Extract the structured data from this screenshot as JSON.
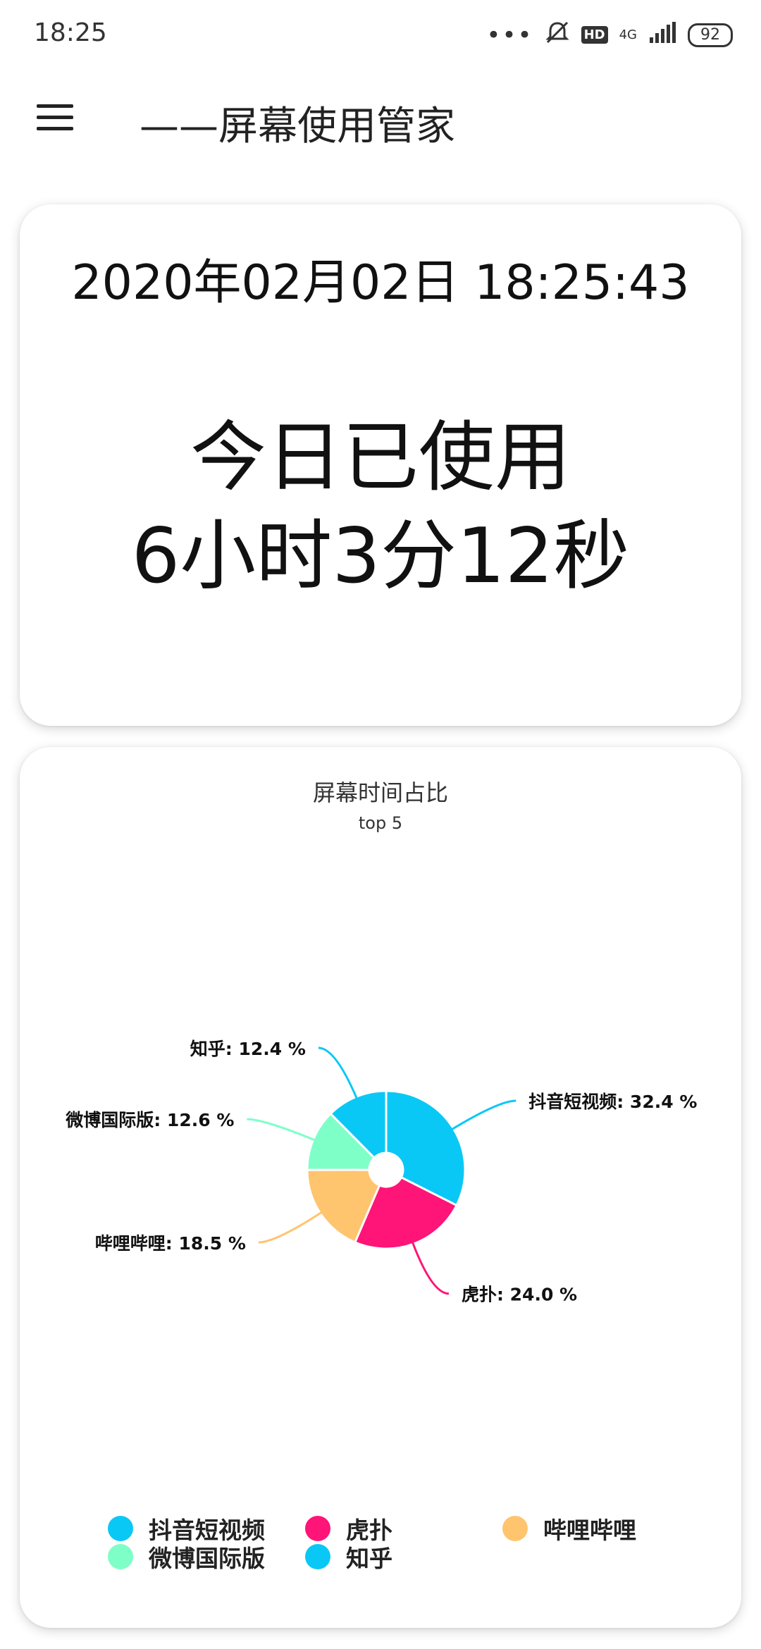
{
  "status_bar": {
    "time": "18:25",
    "dots": "•••",
    "hd": "HD",
    "network": "4G",
    "battery": "92",
    "icons": [
      "more-dots-icon",
      "alarm-off-icon",
      "hd-icon",
      "signal-icon",
      "battery-icon"
    ]
  },
  "app_bar": {
    "title": "——屏幕使用管家",
    "menu_icon": "hamburger-menu-icon"
  },
  "usage_card": {
    "datetime": "2020年02月02日 18:25:43",
    "label": "今日已使用",
    "value": "6小时3分12秒"
  },
  "chart_card": {
    "title": "屏幕时间占比",
    "subtitle": "top 5"
  },
  "chart_data": {
    "type": "pie",
    "title": "屏幕时间占比",
    "subtitle": "top 5",
    "donut": true,
    "legend_position": "bottom",
    "slices": [
      {
        "name": "抖音短视频",
        "value": 32.4,
        "label": "抖音短视频: 32.4 %",
        "color": "#0AC8F5"
      },
      {
        "name": "虎扑",
        "value": 24.0,
        "label": "虎扑: 24.0 %",
        "color": "#FF1478"
      },
      {
        "name": "哔哩哔哩",
        "value": 18.5,
        "label": "哔哩哔哩: 18.5 %",
        "color": "#FFC46E"
      },
      {
        "name": "微博国际版",
        "value": 12.6,
        "label": "微博国际版: 12.6 %",
        "color": "#7EFFC8"
      },
      {
        "name": "知乎",
        "value": 12.4,
        "label": "知乎: 12.4 %",
        "color": "#0AC8F5"
      }
    ]
  }
}
